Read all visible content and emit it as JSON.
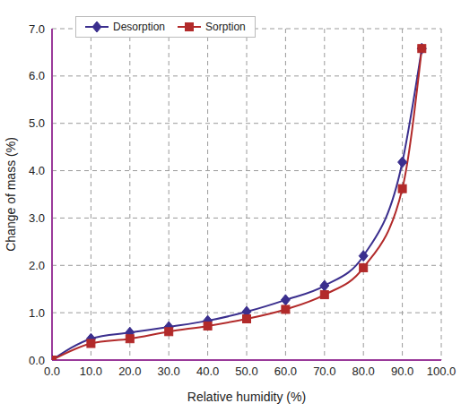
{
  "chart_data": {
    "type": "line",
    "x_label": "Relative humidity (%)",
    "y_label": "Change of mass (%)",
    "x": [
      0,
      10,
      20,
      30,
      40,
      50,
      60,
      70,
      80,
      90,
      95
    ],
    "series": [
      {
        "name": "Desorption",
        "color": "#3b2f8e",
        "marker": "diamond",
        "values": [
          0,
          0.45,
          0.58,
          0.7,
          0.83,
          1.02,
          1.27,
          1.57,
          2.2,
          4.18,
          6.58
        ]
      },
      {
        "name": "Sorption",
        "color": "#b22a2a",
        "marker": "square",
        "values": [
          0,
          0.35,
          0.45,
          0.6,
          0.72,
          0.87,
          1.07,
          1.38,
          1.95,
          3.62,
          6.58
        ]
      }
    ],
    "xlim": [
      0,
      100
    ],
    "xticks": [
      {
        "value": 0,
        "label": "0.0"
      },
      {
        "value": 10,
        "label": "10.0"
      },
      {
        "value": 20,
        "label": "20.0"
      },
      {
        "value": 30,
        "label": "30.0"
      },
      {
        "value": 40,
        "label": "40.0"
      },
      {
        "value": 50,
        "label": "50.0"
      },
      {
        "value": 60,
        "label": "60.0"
      },
      {
        "value": 70,
        "label": "70.0"
      },
      {
        "value": 80,
        "label": "80.0"
      },
      {
        "value": 90,
        "label": "90.0"
      },
      {
        "value": 100,
        "label": "100.0"
      }
    ],
    "ylim": [
      0,
      7
    ],
    "yticks": [
      {
        "value": 0,
        "label": "0.0"
      },
      {
        "value": 1,
        "label": "1.0"
      },
      {
        "value": 2,
        "label": "2.0"
      },
      {
        "value": 3,
        "label": "3.0"
      },
      {
        "value": 4,
        "label": "4.0"
      },
      {
        "value": 5,
        "label": "5.0"
      },
      {
        "value": 6,
        "label": "6.0"
      },
      {
        "value": 7,
        "label": "7.0"
      }
    ],
    "grid": true,
    "legend": "upper left"
  }
}
